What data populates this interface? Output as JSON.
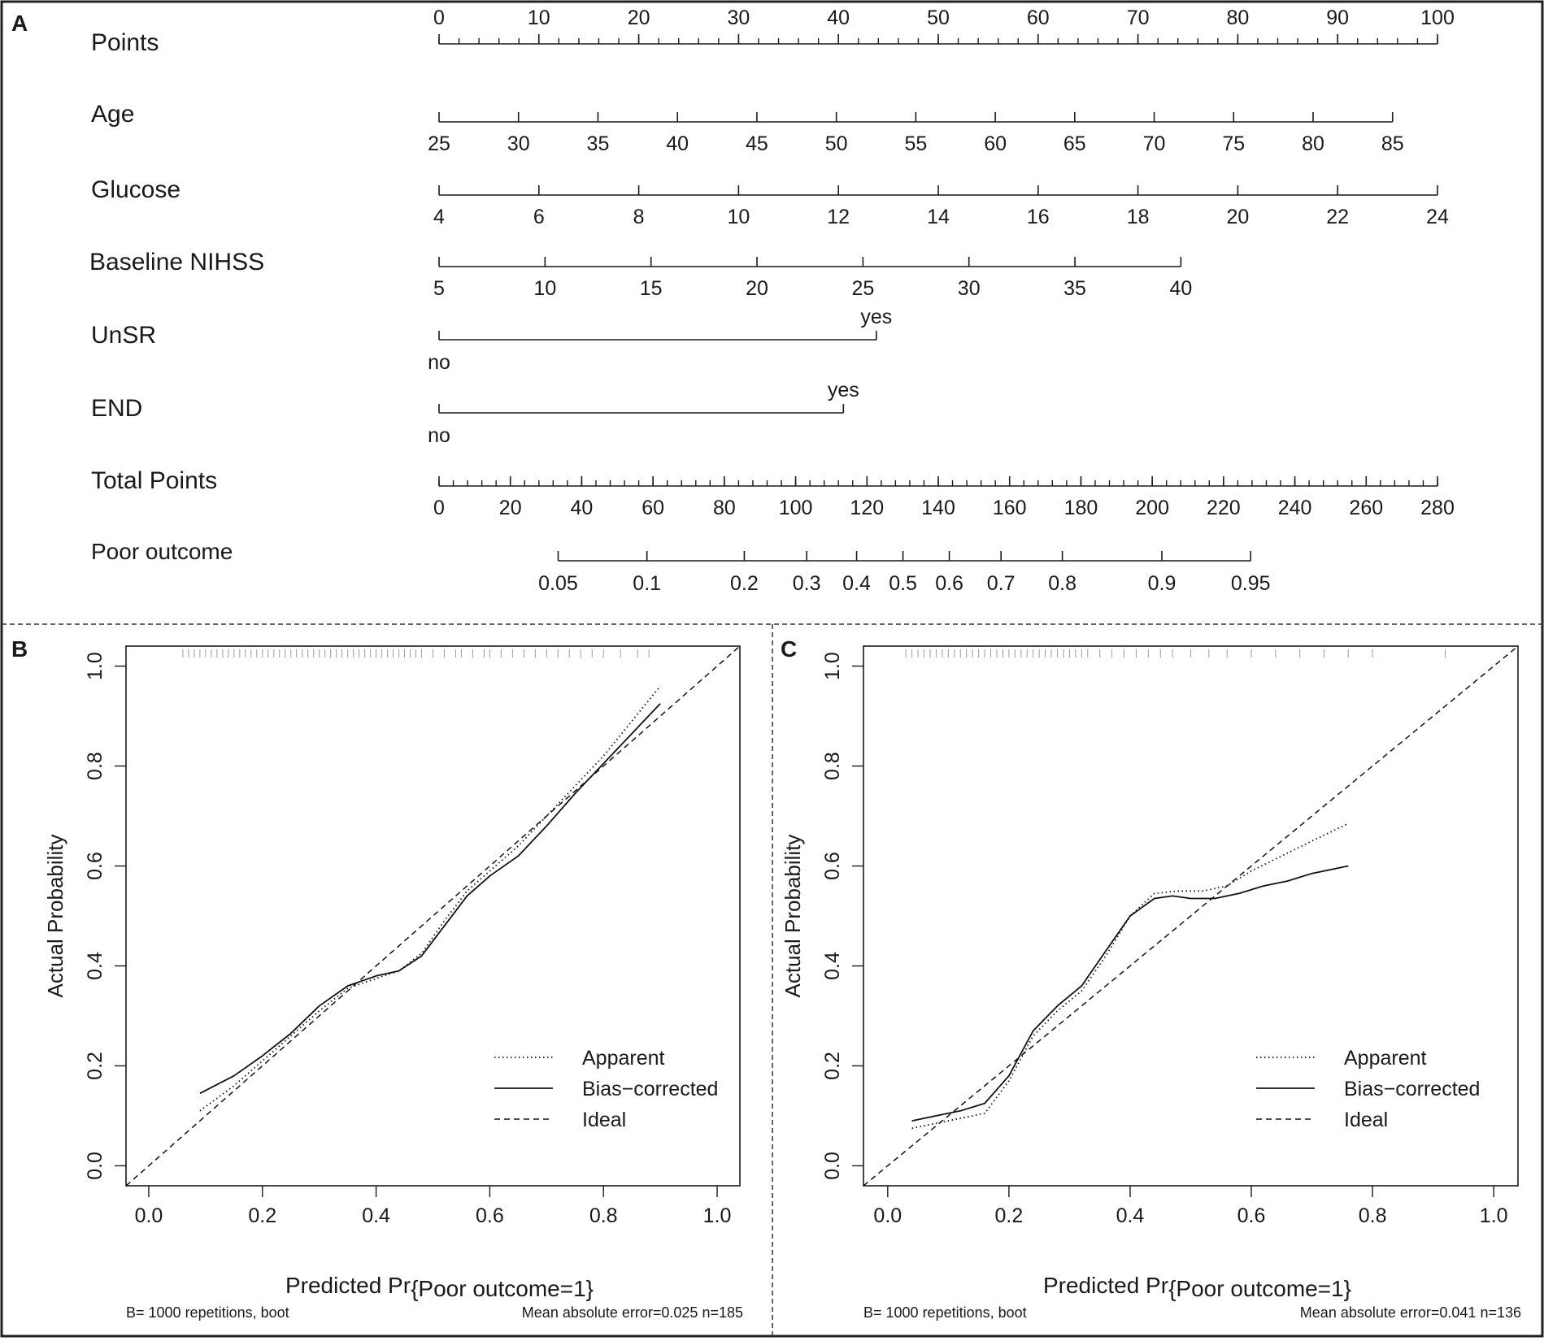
{
  "chart_data": [
    {
      "panel": "A",
      "type": "nomogram",
      "rows": [
        {
          "name": "Points",
          "kind": "continuous",
          "p0": 0,
          "p1": 100,
          "v0": 0,
          "v1": 100,
          "labels": [
            0,
            10,
            20,
            30,
            40,
            50,
            60,
            70,
            80,
            90,
            100
          ],
          "minor_step": 2,
          "labels_above": true
        },
        {
          "name": "Age",
          "kind": "continuous",
          "p0": 0,
          "p1": 95.5,
          "v0": 25,
          "v1": 85,
          "labels": [
            25,
            30,
            35,
            40,
            45,
            50,
            55,
            60,
            65,
            70,
            75,
            80,
            85
          ]
        },
        {
          "name": "Glucose",
          "kind": "continuous",
          "p0": 0,
          "p1": 100,
          "v0": 4,
          "v1": 24,
          "labels": [
            4,
            6,
            8,
            10,
            12,
            14,
            16,
            18,
            20,
            22,
            24
          ]
        },
        {
          "name": "Baseline NIHSS",
          "kind": "continuous",
          "p0": 0,
          "p1": 74.3,
          "v0": 5,
          "v1": 40,
          "labels": [
            5,
            10,
            15,
            20,
            25,
            30,
            35,
            40
          ]
        },
        {
          "name": "UnSR",
          "kind": "categorical",
          "levels": [
            {
              "label": "no",
              "points": 0
            },
            {
              "label": "yes",
              "points": 43.8
            }
          ]
        },
        {
          "name": "END",
          "kind": "categorical",
          "levels": [
            {
              "label": "no",
              "points": 0
            },
            {
              "label": "yes",
              "points": 40.5
            }
          ]
        },
        {
          "name": "Total Points",
          "kind": "continuous",
          "p0": 0,
          "p1": 100,
          "v0": 0,
          "v1": 280,
          "labels": [
            0,
            20,
            40,
            60,
            80,
            100,
            120,
            140,
            160,
            180,
            200,
            220,
            240,
            260,
            280
          ],
          "minor_step": 4
        },
        {
          "name": "Poor outcome",
          "kind": "probability",
          "ticks": [
            {
              "label": "0.05",
              "total_points": 33.4
            },
            {
              "label": "0.1",
              "total_points": 58.3
            },
            {
              "label": "0.2",
              "total_points": 85.6
            },
            {
              "label": "0.3",
              "total_points": 103.1
            },
            {
              "label": "0.4",
              "total_points": 117.1
            },
            {
              "label": "0.5",
              "total_points": 130.1
            },
            {
              "label": "0.6",
              "total_points": 143.1
            },
            {
              "label": "0.7",
              "total_points": 157.6
            },
            {
              "label": "0.8",
              "total_points": 174.8
            },
            {
              "label": "0.9",
              "total_points": 202.7
            },
            {
              "label": "0.95",
              "total_points": 227.6
            }
          ]
        }
      ]
    },
    {
      "panel": "B",
      "type": "line",
      "xlabel_prefix": "Predicted Pr",
      "xlabel_suffix": "{Poor outcome=1}",
      "ylabel": "Actual Probability",
      "xlim": [
        -0.04,
        1.04
      ],
      "ylim": [
        -0.04,
        1.04
      ],
      "xticks": [
        "0.0",
        "0.2",
        "0.4",
        "0.6",
        "0.8",
        "1.0"
      ],
      "yticks": [
        "0.0",
        "0.2",
        "0.4",
        "0.6",
        "0.8",
        "1.0"
      ],
      "legend": [
        "Apparent",
        "Bias−corrected",
        "Ideal"
      ],
      "series": [
        {
          "name": "Apparent",
          "style": "dotted",
          "x": [
            0.09,
            0.15,
            0.2,
            0.25,
            0.3,
            0.35,
            0.4,
            0.44,
            0.48,
            0.52,
            0.56,
            0.6,
            0.65,
            0.7,
            0.75,
            0.8,
            0.85,
            0.9
          ],
          "y": [
            0.11,
            0.16,
            0.21,
            0.26,
            0.31,
            0.355,
            0.375,
            0.39,
            0.425,
            0.49,
            0.55,
            0.59,
            0.64,
            0.7,
            0.76,
            0.82,
            0.89,
            0.96
          ]
        },
        {
          "name": "Bias−corrected",
          "style": "solid",
          "x": [
            0.09,
            0.15,
            0.2,
            0.25,
            0.3,
            0.35,
            0.4,
            0.44,
            0.48,
            0.52,
            0.56,
            0.6,
            0.65,
            0.7,
            0.75,
            0.8,
            0.85,
            0.9
          ],
          "y": [
            0.145,
            0.18,
            0.22,
            0.265,
            0.32,
            0.36,
            0.38,
            0.39,
            0.42,
            0.48,
            0.54,
            0.58,
            0.62,
            0.68,
            0.745,
            0.805,
            0.865,
            0.925
          ]
        },
        {
          "name": "Ideal",
          "style": "dashed",
          "x": [
            -0.04,
            1.04
          ],
          "y": [
            -0.04,
            1.04
          ]
        }
      ],
      "rug": [
        0.06,
        0.07,
        0.08,
        0.09,
        0.1,
        0.11,
        0.12,
        0.13,
        0.14,
        0.15,
        0.16,
        0.17,
        0.18,
        0.19,
        0.2,
        0.21,
        0.22,
        0.23,
        0.24,
        0.25,
        0.26,
        0.27,
        0.28,
        0.29,
        0.3,
        0.31,
        0.32,
        0.33,
        0.34,
        0.35,
        0.36,
        0.37,
        0.38,
        0.39,
        0.4,
        0.41,
        0.42,
        0.43,
        0.44,
        0.45,
        0.46,
        0.47,
        0.48,
        0.5,
        0.52,
        0.54,
        0.55,
        0.57,
        0.59,
        0.6,
        0.62,
        0.64,
        0.66,
        0.68,
        0.7,
        0.72,
        0.74,
        0.76,
        0.78,
        0.8,
        0.83,
        0.86,
        0.88
      ],
      "footer_left": "B= 1000 repetitions, boot",
      "footer_right": "Mean absolute error=0.025 n=185"
    },
    {
      "panel": "C",
      "type": "line",
      "xlabel_prefix": "Predicted Pr",
      "xlabel_suffix": "{Poor outcome=1}",
      "ylabel": "Actual Probability",
      "xlim": [
        -0.04,
        1.04
      ],
      "ylim": [
        -0.04,
        1.04
      ],
      "xticks": [
        "0.0",
        "0.2",
        "0.4",
        "0.6",
        "0.8",
        "1.0"
      ],
      "yticks": [
        "0.0",
        "0.2",
        "0.4",
        "0.6",
        "0.8",
        "1.0"
      ],
      "legend": [
        "Apparent",
        "Bias−corrected",
        "Ideal"
      ],
      "series": [
        {
          "name": "Apparent",
          "style": "dotted",
          "x": [
            0.04,
            0.08,
            0.12,
            0.16,
            0.2,
            0.24,
            0.28,
            0.32,
            0.36,
            0.4,
            0.44,
            0.48,
            0.52,
            0.56,
            0.6,
            0.65,
            0.7,
            0.76
          ],
          "y": [
            0.075,
            0.085,
            0.095,
            0.105,
            0.17,
            0.26,
            0.31,
            0.35,
            0.42,
            0.5,
            0.545,
            0.55,
            0.55,
            0.56,
            0.59,
            0.62,
            0.65,
            0.685
          ]
        },
        {
          "name": "Bias−corrected",
          "style": "solid",
          "x": [
            0.04,
            0.08,
            0.12,
            0.16,
            0.2,
            0.24,
            0.28,
            0.32,
            0.36,
            0.4,
            0.44,
            0.47,
            0.5,
            0.54,
            0.58,
            0.62,
            0.66,
            0.7,
            0.76
          ],
          "y": [
            0.09,
            0.1,
            0.11,
            0.125,
            0.18,
            0.27,
            0.32,
            0.36,
            0.43,
            0.5,
            0.535,
            0.54,
            0.535,
            0.535,
            0.545,
            0.56,
            0.57,
            0.585,
            0.6
          ]
        },
        {
          "name": "Ideal",
          "style": "dashed",
          "x": [
            -0.04,
            1.04
          ],
          "y": [
            -0.04,
            1.04
          ]
        }
      ],
      "rug": [
        0.03,
        0.04,
        0.05,
        0.06,
        0.07,
        0.08,
        0.09,
        0.1,
        0.11,
        0.12,
        0.13,
        0.14,
        0.15,
        0.16,
        0.17,
        0.18,
        0.19,
        0.2,
        0.21,
        0.22,
        0.23,
        0.24,
        0.25,
        0.26,
        0.27,
        0.28,
        0.29,
        0.3,
        0.31,
        0.32,
        0.33,
        0.35,
        0.37,
        0.39,
        0.41,
        0.43,
        0.45,
        0.47,
        0.5,
        0.53,
        0.56,
        0.6,
        0.64,
        0.68,
        0.72,
        0.76,
        0.8,
        0.92
      ],
      "footer_left": "B= 1000 repetitions, boot",
      "footer_right": "Mean absolute error=0.041 n=136"
    }
  ]
}
